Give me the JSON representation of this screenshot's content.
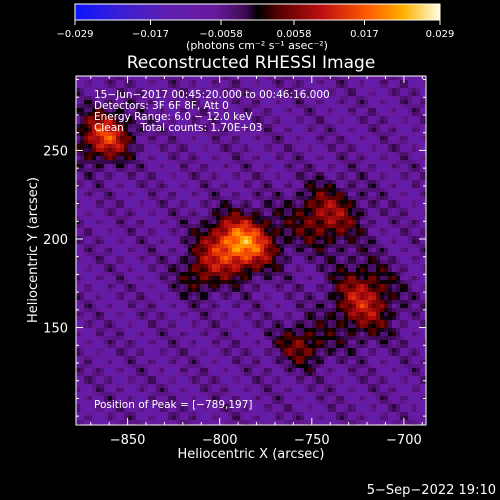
{
  "chart_data": {
    "type": "heatmap",
    "title": "Reconstructed RHESSI Image",
    "xlabel": "Heliocentric X (arcsec)",
    "ylabel": "Heliocentric Y (arcsec)",
    "xlim": [
      -878,
      -688
    ],
    "ylim": [
      95,
      292
    ],
    "xticks": [
      -850,
      -800,
      -750,
      -700
    ],
    "xtick_labels": [
      "−850",
      "−800",
      "−750",
      "−700"
    ],
    "yticks": [
      150,
      200,
      250
    ],
    "ytick_labels": [
      "150",
      "200",
      "250"
    ],
    "colorbar": {
      "min": -0.029,
      "max": 0.029,
      "ticks": [
        -0.029,
        -0.017,
        -0.0058,
        0.0058,
        0.017,
        0.029
      ],
      "tick_labels": [
        "−0.029",
        "−0.017",
        "−0.0058",
        "0.0058",
        "0.017",
        "0.029"
      ],
      "unit_label": "(photons cm⁻² s⁻¹ asec⁻²)"
    },
    "info_lines": [
      "15−Jun−2017 00:45:20.000 to 00:46:16.000",
      "Detectors: 3F 6F 8F, Att 0",
      "Energy Range: 6.0 − 12.0 keV",
      "Clean     Total counts: 1.70E+03"
    ],
    "peak_label": "Position of Peak = [−789,197]",
    "sources": [
      {
        "x": -789,
        "y": 197,
        "amp": 0.029,
        "sx": 13,
        "sy": 11
      },
      {
        "x": -862,
        "y": 258,
        "amp": 0.021,
        "sx": 10,
        "sy": 10
      },
      {
        "x": -742,
        "y": 213,
        "amp": 0.015,
        "sx": 13,
        "sy": 12
      },
      {
        "x": -722,
        "y": 165,
        "amp": 0.017,
        "sx": 12,
        "sy": 14
      },
      {
        "x": -755,
        "y": 140,
        "amp": 0.012,
        "sx": 10,
        "sy": 9
      },
      {
        "x": -810,
        "y": 180,
        "amp": 0.01,
        "sx": 9,
        "sy": 9
      }
    ]
  },
  "footer": {
    "timestamp": "5−Sep−2022 19:10"
  }
}
